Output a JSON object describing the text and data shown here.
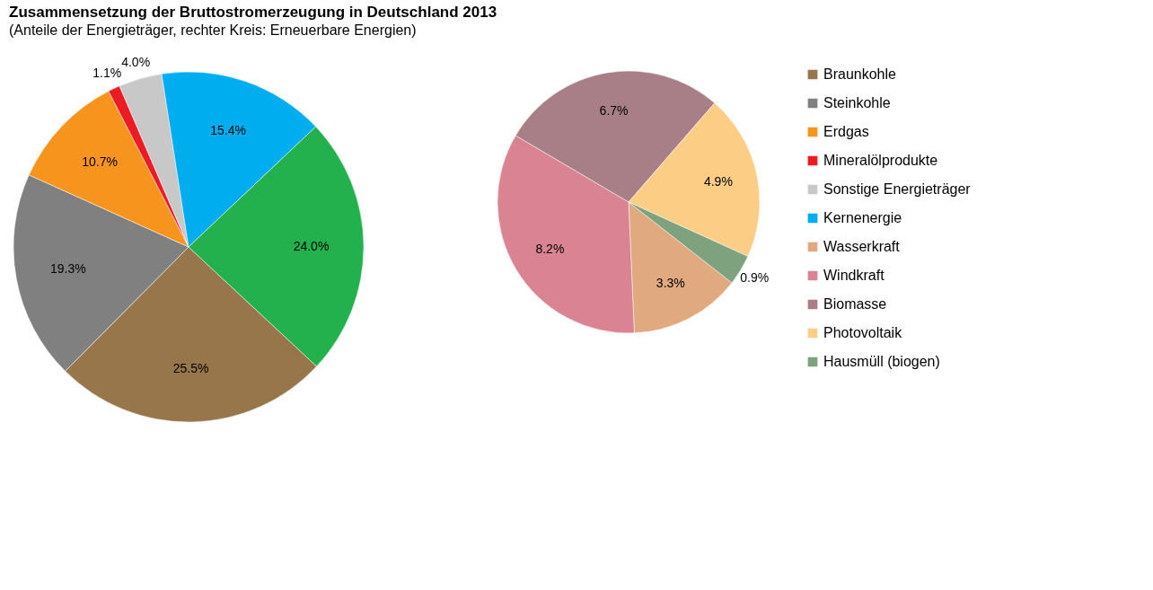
{
  "chart_data": [
    {
      "type": "pie",
      "title": "Zusammensetzung der Bruttostromerzeugung in Deutschland 2013",
      "subtitle": "(Anteile der Energieträger, rechter Kreis: Erneuerbare Energien)",
      "categories": [
        "Braunkohle",
        "Steinkohle",
        "Erdgas",
        "Mineralölprodukte",
        "Sonstige Energieträger",
        "Kernenergie",
        null
      ],
      "values": [
        25.5,
        19.3,
        10.7,
        1.1,
        4.0,
        15.4,
        24.0
      ],
      "value_labels": [
        "25.5%",
        "19.3%",
        "10.7%",
        "1.1%",
        "4.0%",
        "15.4%",
        "24.0%"
      ],
      "colors": [
        "#96764a",
        "#808080",
        "#f7941d",
        "#ed1c24",
        "#c8c8c8",
        "#00aeef",
        "#22b14c"
      ],
      "legend": "right"
    },
    {
      "type": "pie",
      "categories": [
        "Wasserkraft",
        "Windkraft",
        "Biomasse",
        "Photovoltaik",
        "Hausmüll (biogen)"
      ],
      "values": [
        3.3,
        8.2,
        6.7,
        4.9,
        0.9
      ],
      "value_labels": [
        "3.3%",
        "8.2%",
        "6.7%",
        "4.9%",
        "0.9%"
      ],
      "colors": [
        "#e0a97f",
        "#da8493",
        "#a87f87",
        "#fbcd85",
        "#7ea27e"
      ],
      "legend": "right"
    }
  ]
}
